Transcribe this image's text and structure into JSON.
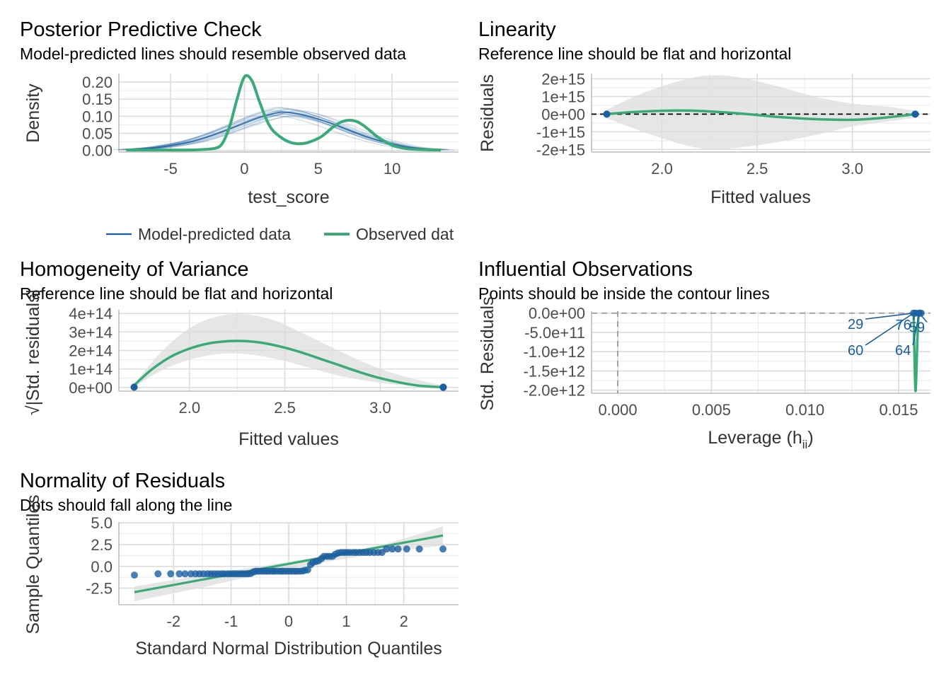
{
  "colors": {
    "predicted": "#1b5fa0",
    "observed": "#3aaa78",
    "band": "#dcdcdc",
    "grid": "#dcdcdc",
    "text_axis": "#4d4d4d"
  },
  "legend": {
    "predicted_label": "Model-predicted data",
    "observed_label": "Observed dat"
  },
  "chart_data": [
    {
      "id": "ppc",
      "type": "line",
      "title": "Posterior Predictive Check",
      "subtitle": "Model-predicted lines should resemble observed data",
      "xlabel": "test_score",
      "ylabel": "Density",
      "xlim": [
        -8.5,
        14.5
      ],
      "ylim": [
        -0.005,
        0.225
      ],
      "xticks": [
        {
          "v": -5,
          "label": "-5"
        },
        {
          "v": 0,
          "label": "0"
        },
        {
          "v": 5,
          "label": "5"
        },
        {
          "v": 10,
          "label": "10"
        }
      ],
      "yticks": [
        {
          "v": 0,
          "label": "0.00"
        },
        {
          "v": 0.05,
          "label": "0.05"
        },
        {
          "v": 0.1,
          "label": "0.10"
        },
        {
          "v": 0.15,
          "label": "0.15"
        },
        {
          "v": 0.2,
          "label": "0.20"
        }
      ],
      "series": [
        {
          "name": "Model-predicted data",
          "role": "predicted_mean",
          "x": [
            -8,
            -6,
            -4,
            -3,
            -2,
            -1,
            0,
            1,
            2,
            2.5,
            3,
            4,
            5,
            6,
            7,
            8,
            9,
            10,
            11,
            12,
            13.3
          ],
          "y": [
            0.002,
            0.008,
            0.022,
            0.033,
            0.047,
            0.063,
            0.08,
            0.096,
            0.108,
            0.112,
            0.111,
            0.104,
            0.092,
            0.077,
            0.06,
            0.044,
            0.03,
            0.019,
            0.01,
            0.005,
            0.002
          ]
        },
        {
          "name": "Observed dat",
          "role": "observed",
          "x": [
            -8,
            -4,
            -3,
            -2,
            -1.5,
            -1,
            -0.5,
            0,
            0.5,
            1,
            1.5,
            2,
            3,
            4,
            5,
            5.5,
            6,
            6.5,
            7,
            7.5,
            8,
            8.5,
            9,
            10,
            11,
            12,
            13.3
          ],
          "y": [
            0.001,
            0.001,
            0.002,
            0.006,
            0.02,
            0.07,
            0.15,
            0.215,
            0.205,
            0.145,
            0.09,
            0.055,
            0.025,
            0.02,
            0.035,
            0.05,
            0.068,
            0.082,
            0.088,
            0.086,
            0.075,
            0.058,
            0.04,
            0.015,
            0.005,
            0.002,
            0.001
          ]
        }
      ]
    },
    {
      "id": "linearity",
      "type": "line",
      "title": "Linearity",
      "subtitle": "Reference line should be flat and horizontal",
      "xlabel": "Fitted values",
      "ylabel": "Residuals",
      "xlim": [
        1.63,
        3.41
      ],
      "ylim": [
        -2150000000000000.0,
        2300000000000000.0
      ],
      "xticks": [
        {
          "v": 2.0,
          "label": "2.0"
        },
        {
          "v": 2.5,
          "label": "2.5"
        },
        {
          "v": 3.0,
          "label": "3.0"
        }
      ],
      "yticks": [
        {
          "v": -2000000000000000.0,
          "label": "-2e+15"
        },
        {
          "v": -1000000000000000.0,
          "label": "-1e+15"
        },
        {
          "v": 0,
          "label": "0e+00"
        },
        {
          "v": 1000000000000000.0,
          "label": "1e+15"
        },
        {
          "v": 2000000000000000.0,
          "label": "2e+15"
        }
      ],
      "reference_line": 0,
      "band": {
        "x": [
          1.7,
          1.9,
          2.1,
          2.25,
          2.4,
          2.6,
          2.8,
          3.0,
          3.2,
          3.33
        ],
        "upper": [
          200000000000000.0,
          1200000000000000.0,
          1900000000000000.0,
          2200000000000000.0,
          2100000000000000.0,
          1600000000000000.0,
          1000000000000000.0,
          600000000000000.0,
          400000000000000.0,
          200000000000000.0
        ],
        "lower": [
          -200000000000000.0,
          -1000000000000000.0,
          -1700000000000000.0,
          -2000000000000000.0,
          -1900000000000000.0,
          -1600000000000000.0,
          -1200000000000000.0,
          -700000000000000.0,
          -400000000000000.0,
          -200000000000000.0
        ]
      },
      "smooth": {
        "x": [
          1.7,
          1.85,
          2.0,
          2.15,
          2.3,
          2.45,
          2.6,
          2.8,
          3.0,
          3.15,
          3.33
        ],
        "y": [
          0,
          120000000000000.0,
          190000000000000.0,
          200000000000000.0,
          120000000000000.0,
          0.0,
          -150000000000000.0,
          -280000000000000.0,
          -320000000000000.0,
          -220000000000000.0,
          0
        ]
      },
      "points": {
        "x": [
          1.71,
          1.71,
          3.33,
          3.33,
          3.33
        ],
        "y": [
          0,
          0,
          0,
          0,
          0
        ]
      }
    },
    {
      "id": "homogeneity",
      "type": "line",
      "title": "Homogeneity of Variance",
      "subtitle": "Reference line should be flat and horizontal",
      "xlabel": "Fitted values",
      "ylabel": "√|Std. residuals|",
      "xlim": [
        1.63,
        3.41
      ],
      "ylim": [
        -20000000000000.0,
        420000000000000.0
      ],
      "xticks": [
        {
          "v": 2.0,
          "label": "2.0"
        },
        {
          "v": 2.5,
          "label": "2.5"
        },
        {
          "v": 3.0,
          "label": "3.0"
        }
      ],
      "yticks": [
        {
          "v": 0,
          "label": "0e+00"
        },
        {
          "v": 100000000000000.0,
          "label": "1e+14"
        },
        {
          "v": 200000000000000.0,
          "label": "2e+14"
        },
        {
          "v": 300000000000000.0,
          "label": "3e+14"
        },
        {
          "v": 400000000000000.0,
          "label": "4e+14"
        }
      ],
      "band": {
        "x": [
          1.7,
          1.85,
          2.0,
          2.15,
          2.3,
          2.45,
          2.6,
          2.8,
          3.0,
          3.2,
          3.33
        ],
        "upper": [
          5000000000000.0,
          190000000000000.0,
          320000000000000.0,
          385000000000000.0,
          395000000000000.0,
          360000000000000.0,
          290000000000000.0,
          190000000000000.0,
          100000000000000.0,
          40000000000000.0,
          10000000000000.0
        ],
        "lower": [
          -5000000000000.0,
          90000000000000.0,
          150000000000000.0,
          180000000000000.0,
          180000000000000.0,
          155000000000000.0,
          115000000000000.0,
          60000000000000.0,
          25000000000000.0,
          5000000000000.0,
          -5000000000000.0
        ]
      },
      "smooth": {
        "x": [
          1.7,
          1.8,
          1.9,
          2.0,
          2.1,
          2.2,
          2.3,
          2.4,
          2.5,
          2.6,
          2.7,
          2.8,
          2.9,
          3.0,
          3.1,
          3.2,
          3.33
        ],
        "y": [
          2000000000000.0,
          95000000000000.0,
          165000000000000.0,
          210000000000000.0,
          238000000000000.0,
          250000000000000.0,
          250000000000000.0,
          238000000000000.0,
          215000000000000.0,
          185000000000000.0,
          150000000000000.0,
          115000000000000.0,
          80000000000000.0,
          50000000000000.0,
          27000000000000.0,
          10000000000000.0,
          1000000000000.0
        ]
      },
      "points": {
        "x": [
          1.71,
          1.71,
          3.33,
          3.33,
          3.33
        ],
        "y": [
          1000000000000.0,
          2000000000000.0,
          1000000000000.0,
          2000000000000.0,
          0.0
        ]
      }
    },
    {
      "id": "influence",
      "type": "line",
      "title": "Influential Observations",
      "subtitle": "Points should be inside the contour lines",
      "xlabel": "Leverage (h",
      "xlabel_sub": "ii",
      "xlabel_end": ")",
      "ylabel": "Std. Residuals",
      "xlim": [
        -0.0014,
        0.0167
      ],
      "ylim": [
        -2080000000000.0,
        50000000000.0
      ],
      "xticks": [
        {
          "v": 0,
          "label": "0.000"
        },
        {
          "v": 0.005,
          "label": "0.005"
        },
        {
          "v": 0.01,
          "label": "0.010"
        },
        {
          "v": 0.015,
          "label": "0.015"
        }
      ],
      "yticks": [
        {
          "v": -2000000000000.0,
          "label": "-2.0e+12"
        },
        {
          "v": -1500000000000.0,
          "label": "-1.5e+12"
        },
        {
          "v": -1000000000000.0,
          "label": "-1.0e+12"
        },
        {
          "v": -500000000000.0,
          "label": "-5.0e+11"
        },
        {
          "v": 0,
          "label": "0.0e+00"
        }
      ],
      "reference_line": 0,
      "reference_vline": 0,
      "smooth": {
        "x": [
          0.0158,
          0.01585,
          0.0159,
          0.01595,
          0.016,
          0.01605,
          0.0161
        ],
        "y": [
          -20000000000.0,
          -1200000000000.0,
          -2020000000000.0,
          -1500000000000.0,
          -700000000000.0,
          -150000000000.0,
          0
        ]
      },
      "points": {
        "x": [
          0.0158,
          0.0159,
          0.0161,
          0.0161,
          0.0162
        ],
        "y": [
          0,
          0,
          0,
          0,
          0
        ]
      },
      "labels": [
        {
          "text": "29",
          "x": 0.0127,
          "y": -300000000000.0,
          "px": 0.0158,
          "py": 0
        },
        {
          "text": "76",
          "x": 0.01525,
          "y": -320000000000.0,
          "px": 0.0159,
          "py": 0
        },
        {
          "text": "59",
          "x": 0.01598,
          "y": -380000000000.0,
          "px": 0.0161,
          "py": 0
        },
        {
          "text": "60",
          "x": 0.0127,
          "y": -980000000000.0,
          "px": 0.0158,
          "py": 0
        },
        {
          "text": "64",
          "x": 0.01523,
          "y": -980000000000.0,
          "px": 0.0161,
          "py": 0
        }
      ]
    },
    {
      "id": "normality",
      "type": "scatter",
      "title": "Normality of Residuals",
      "subtitle": "Dots should fall along the line",
      "xlabel": "Standard Normal Distribution Quantiles",
      "ylabel": "Sample Quantiles",
      "xlim": [
        -2.95,
        2.95
      ],
      "ylim": [
        -4.4,
        5.1
      ],
      "xticks": [
        {
          "v": -2,
          "label": "-2"
        },
        {
          "v": -1,
          "label": "-1"
        },
        {
          "v": 0,
          "label": "0"
        },
        {
          "v": 1,
          "label": "1"
        },
        {
          "v": 2,
          "label": "2"
        }
      ],
      "yticks": [
        {
          "v": -2.5,
          "label": "-2.5"
        },
        {
          "v": 0,
          "label": "0.0"
        },
        {
          "v": 2.5,
          "label": "2.5"
        },
        {
          "v": 5,
          "label": "5.0"
        }
      ],
      "line": {
        "x": [
          -2.68,
          2.68
        ],
        "y": [
          -2.95,
          3.55
        ]
      },
      "band": {
        "x": [
          -2.68,
          -1.5,
          0,
          1.5,
          2.68
        ],
        "upper": [
          -2.3,
          -1.0,
          0.55,
          2.3,
          4.6
        ],
        "lower": [
          -4.0,
          -2.4,
          -0.25,
          1.4,
          2.4
        ]
      },
      "points": {
        "x": [
          -2.68,
          -2.27,
          -2.05,
          -1.9,
          -1.8,
          -1.7,
          -1.62,
          -1.55,
          -1.48,
          -1.41,
          -1.35,
          -1.29,
          -1.23,
          -1.17,
          -1.12,
          -1.06,
          -1.01,
          -0.96,
          -0.91,
          -0.86,
          -0.81,
          -0.76,
          -0.71,
          -0.66,
          -0.61,
          -0.57,
          -0.52,
          -0.47,
          -0.42,
          -0.38,
          -0.33,
          -0.28,
          -0.24,
          -0.19,
          -0.14,
          -0.1,
          -0.05,
          0.0,
          0.05,
          0.1,
          0.14,
          0.19,
          0.24,
          0.28,
          0.33,
          0.38,
          0.42,
          0.47,
          0.52,
          0.57,
          0.61,
          0.66,
          0.71,
          0.76,
          0.81,
          0.86,
          0.91,
          0.96,
          1.01,
          1.06,
          1.12,
          1.17,
          1.23,
          1.29,
          1.35,
          1.41,
          1.48,
          1.55,
          1.62,
          1.7,
          1.8,
          1.9,
          2.05,
          2.27,
          2.68
        ],
        "y": [
          -1.0,
          -0.85,
          -0.85,
          -0.85,
          -0.85,
          -0.85,
          -0.85,
          -0.85,
          -0.85,
          -0.85,
          -0.85,
          -0.85,
          -0.85,
          -0.85,
          -0.85,
          -0.85,
          -0.85,
          -0.85,
          -0.85,
          -0.85,
          -0.85,
          -0.85,
          -0.85,
          -0.82,
          -0.62,
          -0.55,
          -0.55,
          -0.55,
          -0.55,
          -0.55,
          -0.55,
          -0.55,
          -0.55,
          -0.55,
          -0.55,
          -0.55,
          -0.55,
          -0.55,
          -0.55,
          -0.55,
          -0.55,
          -0.55,
          -0.52,
          -0.45,
          -0.4,
          0.2,
          0.45,
          0.55,
          0.65,
          0.9,
          1.15,
          1.15,
          1.15,
          1.15,
          1.4,
          1.55,
          1.6,
          1.6,
          1.6,
          1.6,
          1.6,
          1.6,
          1.6,
          1.6,
          1.6,
          1.6,
          1.6,
          1.6,
          1.6,
          2.0,
          2.0,
          2.0,
          2.0,
          2.0,
          2.0
        ]
      }
    }
  ]
}
